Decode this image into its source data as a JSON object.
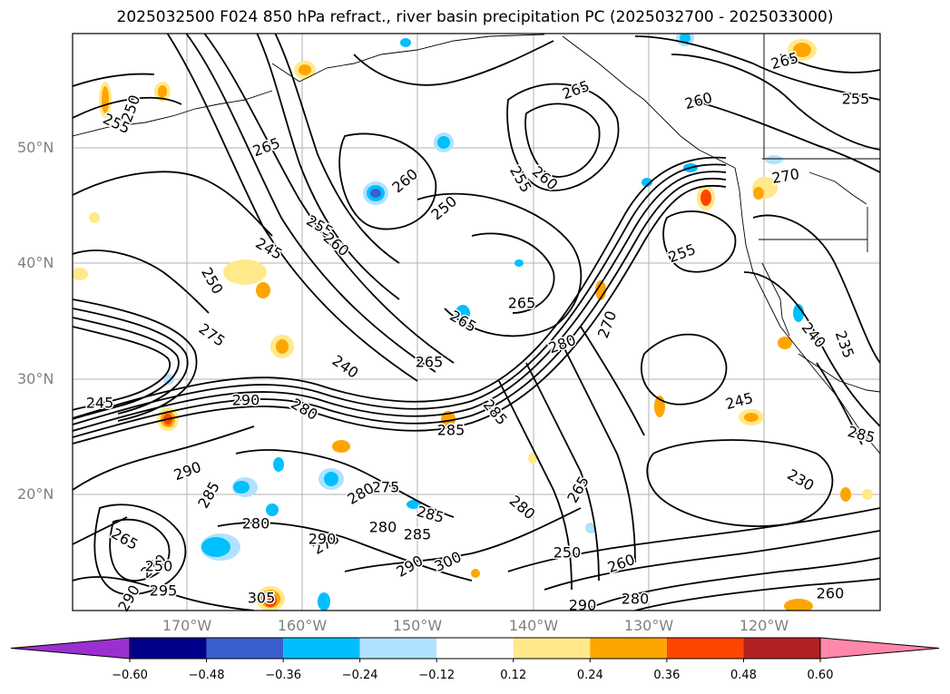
{
  "title": "2025032500 F024 850 hPa refract., river basin precipitation PC (2025032700 - 2025033000)",
  "lat_labels": [
    "50°N",
    "40°N",
    "30°N",
    "20°N"
  ],
  "lon_labels": [
    "170°W",
    "160°W",
    "150°W",
    "140°W",
    "130°W",
    "120°W"
  ],
  "contour_labels": [
    "255",
    "250",
    "265",
    "260",
    "250",
    "255",
    "260",
    "255",
    "260",
    "265",
    "245",
    "260",
    "255",
    "265",
    "250",
    "265",
    "265",
    "255",
    "270",
    "275",
    "280",
    "250",
    "240",
    "265",
    "270",
    "240",
    "235",
    "245",
    "290",
    "280",
    "285",
    "285",
    "290",
    "285",
    "280",
    "275",
    "285",
    "280",
    "280",
    "290",
    "285",
    "265",
    "270",
    "250",
    "260",
    "290",
    "295",
    "300",
    "275",
    "280",
    "290",
    "230",
    "265",
    "280",
    "305",
    "290",
    "260",
    "285",
    "245"
  ],
  "colorbar": {
    "ticks": [
      "−0.60",
      "−0.48",
      "−0.36",
      "−0.24",
      "−0.12",
      "0.12",
      "0.24",
      "0.36",
      "0.48",
      "0.60"
    ],
    "colors": [
      "#9b30d0",
      "#00008b",
      "#3a5fcd",
      "#00bfff",
      "#b0e2ff",
      "#ffffff",
      "#ffe98a",
      "#ffa500",
      "#ff4500",
      "#b22222",
      "#ff88aa"
    ]
  }
}
